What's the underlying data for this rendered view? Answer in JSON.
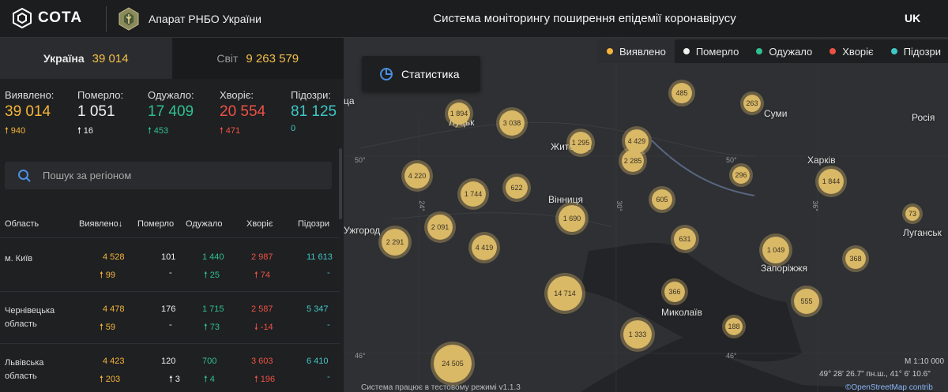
{
  "header": {
    "logo_text": "СОТА",
    "org_name": "Апарат РНБО України",
    "title": "Система моніторингу поширення епідемії коронавірусу",
    "lang": "UK"
  },
  "tabs": [
    {
      "label": "Україна",
      "value": "39 014"
    },
    {
      "label": "Світ",
      "value": "9 263 579"
    }
  ],
  "stats": [
    {
      "label": "Виявлено:",
      "value": "39 014",
      "delta": "940",
      "color": "#f5b53a"
    },
    {
      "label": "Померло:",
      "value": "1 051",
      "delta": "16",
      "color": "#f0f0f0"
    },
    {
      "label": "Одужало:",
      "value": "17 409",
      "delta": "453",
      "color": "#2fc18e"
    },
    {
      "label": "Хворіє:",
      "value": "20 554",
      "delta": "471",
      "color": "#ee5245"
    },
    {
      "label": "Підозри:",
      "value": "81 125",
      "delta": "0",
      "color": "#3fc7c7"
    }
  ],
  "search": {
    "placeholder": "Пошук за регіоном"
  },
  "table": {
    "headers": [
      "Область",
      "Виявлено",
      "Померло",
      "Одужало",
      "Хворіє",
      "Підозри"
    ],
    "sort_arrow": "↓",
    "rows": [
      {
        "name": "м. Київ",
        "detected": "4 528",
        "detected_d": "99",
        "died": "101",
        "died_d": "-",
        "recovered": "1 440",
        "recovered_d": "25",
        "sick": "2 987",
        "sick_d": "74",
        "susp": "11 613",
        "susp_d": "-"
      },
      {
        "name": "Чернівецька область",
        "detected": "4 478",
        "detected_d": "59",
        "died": "176",
        "died_d": "-",
        "recovered": "1 715",
        "recovered_d": "73",
        "sick": "2 587",
        "sick_d": "-14",
        "susp": "5 347",
        "susp_d": "-"
      },
      {
        "name": "Львівська область",
        "detected": "4 423",
        "detected_d": "203",
        "died": "120",
        "died_d": "3",
        "recovered": "700",
        "recovered_d": "4",
        "sick": "3 603",
        "sick_d": "196",
        "susp": "6 410",
        "susp_d": "-"
      }
    ]
  },
  "map": {
    "stat_button": "Статистика",
    "legend": [
      {
        "label": "Виявлено",
        "color": "#f5b53a"
      },
      {
        "label": "Померло",
        "color": "#f0f0f0"
      },
      {
        "label": "Одужало",
        "color": "#2fc18e"
      },
      {
        "label": "Хворіє",
        "color": "#ee5245"
      },
      {
        "label": "Підозри",
        "color": "#3fc7c7"
      }
    ],
    "cities": [
      "Луцьк",
      "Житомир",
      "Суми",
      "Харків",
      "Вінниця",
      "Ужгород",
      "Запоріжжя",
      "Миколаїв",
      "Луганськ",
      "Росія",
      "ца"
    ],
    "grid_labels": [
      "50°",
      "50°",
      "24°",
      "30°",
      "36°",
      "46°",
      "46°"
    ],
    "bubbles": [
      "1 894",
      "3 038",
      "1 295",
      "4 429",
      "485",
      "263",
      "2 285",
      "4 220",
      "1 744",
      "622",
      "296",
      "1 844",
      "605",
      "1 690",
      "2 091",
      "4 419",
      "2 291",
      "631",
      "1 049",
      "73",
      "368",
      "14 714",
      "366",
      "555",
      "188",
      "1 333",
      "24 505"
    ],
    "footer_note": "Система працює в тестовому режимі v1.1.3",
    "coords": "49° 28' 26.7\" пн.ш., 41° 6' 10.6\"",
    "scale": "М 1:10 000",
    "attribution": "©OpenStreetMap contrib"
  }
}
